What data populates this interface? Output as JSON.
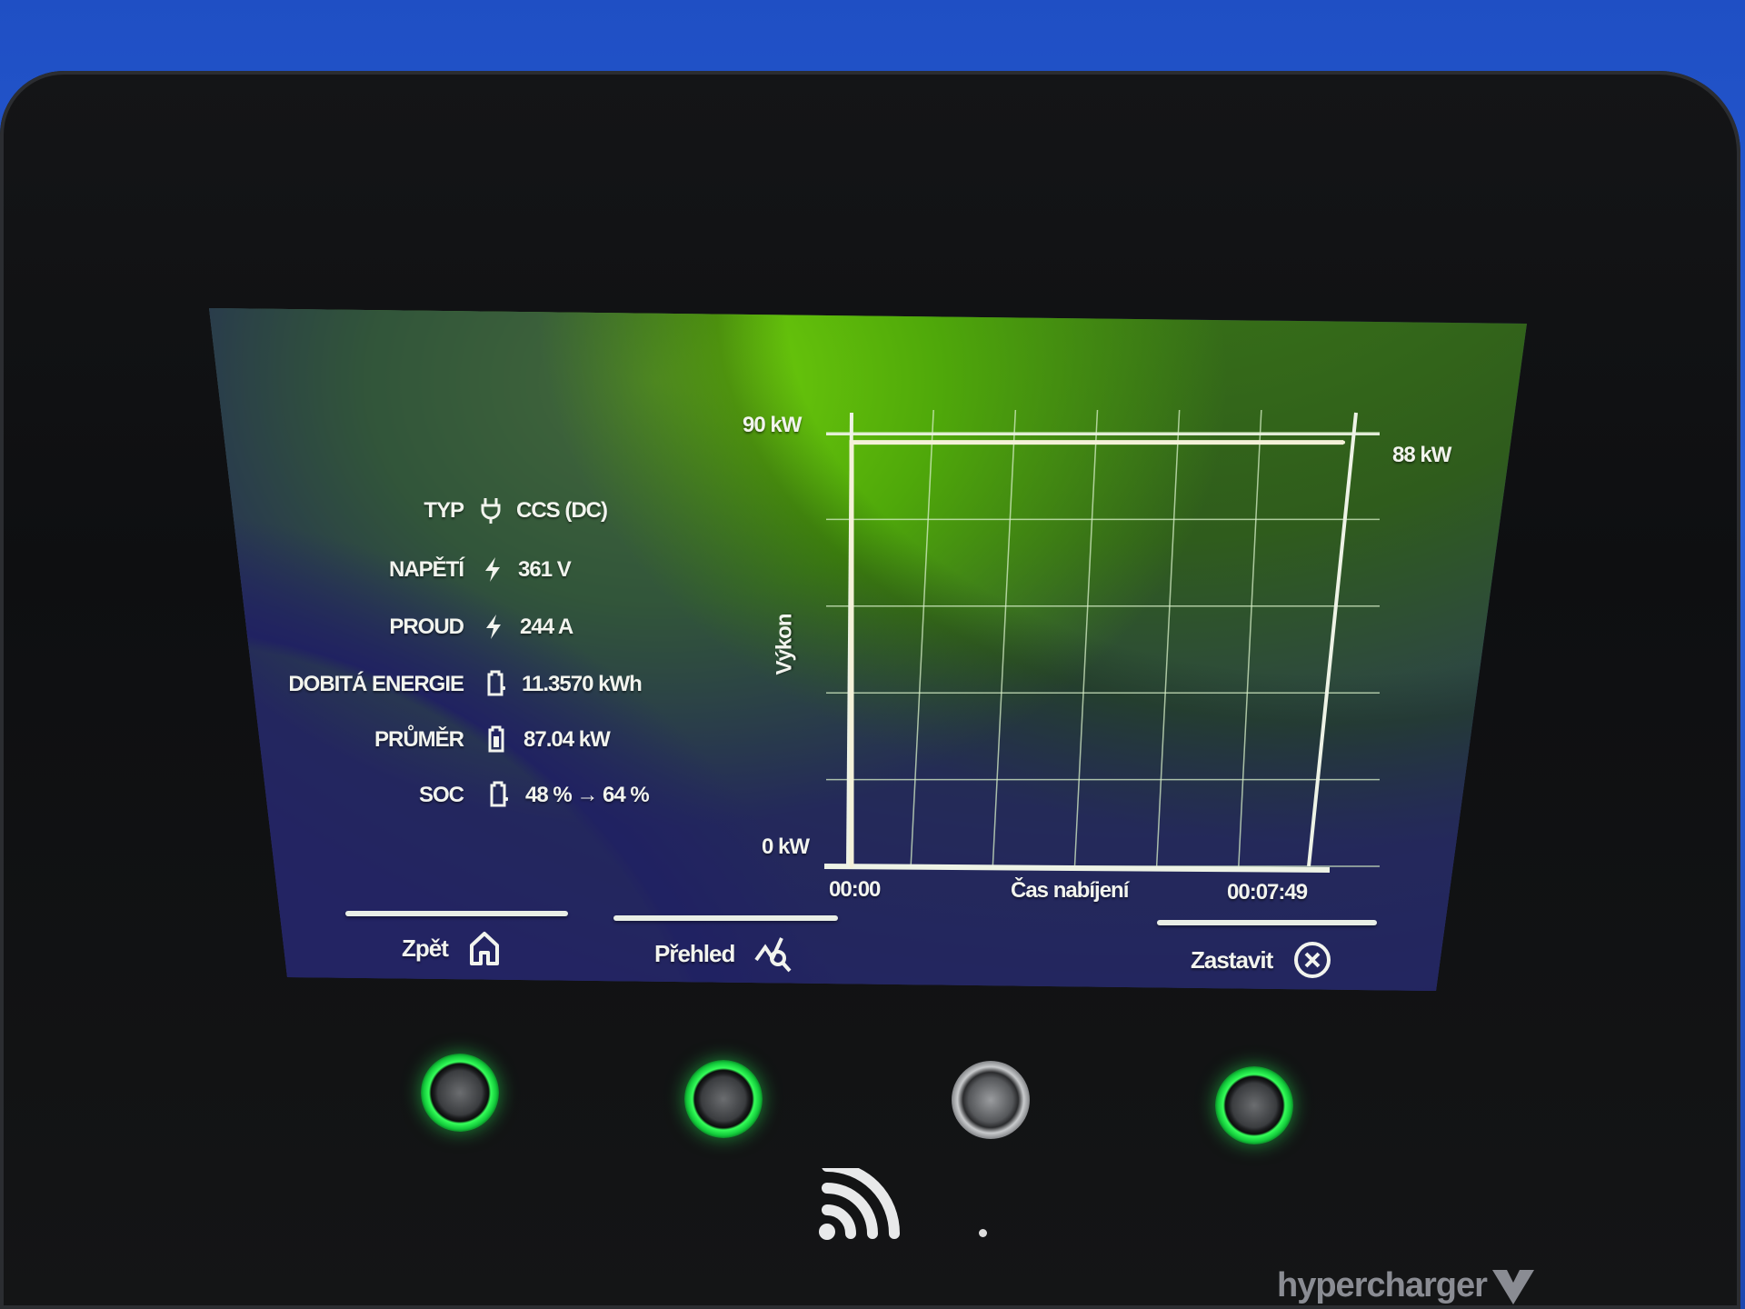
{
  "info_rows": [
    {
      "label": "TYP",
      "icon": "plug-icon",
      "value": "CCS (DC)"
    },
    {
      "label": "NAPĚTÍ",
      "icon": "lightning-icon",
      "value": "361  V"
    },
    {
      "label": "PROUD",
      "icon": "lightning-icon",
      "value": "244  A"
    },
    {
      "label": "DOBITÁ ENERGIE",
      "icon": "battery-charging-icon",
      "value": "11.3570  kWh"
    },
    {
      "label": "PRŮMĚR",
      "icon": "battery-icon",
      "value": "87.04  kW"
    },
    {
      "label": "SOC",
      "icon": "battery-charging-icon",
      "value": "48 % → 64 %"
    }
  ],
  "chart_data": {
    "type": "line",
    "ylabel": "Výkon",
    "xlabel": "Čas nabíjení",
    "y_top_label": "90 kW",
    "y_bottom_label": "0 kW",
    "current_label": "88 kW",
    "x_start_label": "00:00",
    "x_end_label": "00:07:49",
    "ylim": [
      0,
      90
    ],
    "xlim": [
      "00:00",
      "00:07:49"
    ],
    "grid": true,
    "points": [
      {
        "t": "00:00",
        "kW": 0
      },
      {
        "t": "00:00",
        "kW": 88
      },
      {
        "t": "00:07:49",
        "kW": 88
      }
    ],
    "line_color": "#f4f1d8",
    "grid_color": "#d8f0c8"
  },
  "buttons": {
    "back": {
      "label": "Zpět",
      "icon": "home-icon"
    },
    "overview": {
      "label": "Přehled",
      "icon": "chart-search-icon"
    },
    "stop": {
      "label": "Zastavit",
      "icon": "close-circle-icon"
    }
  },
  "brand": "hypercharger",
  "colors": {
    "accent_green": "#36ff5a",
    "screen_green": "#78d80c",
    "housing_blue": "#2a5fd6"
  }
}
